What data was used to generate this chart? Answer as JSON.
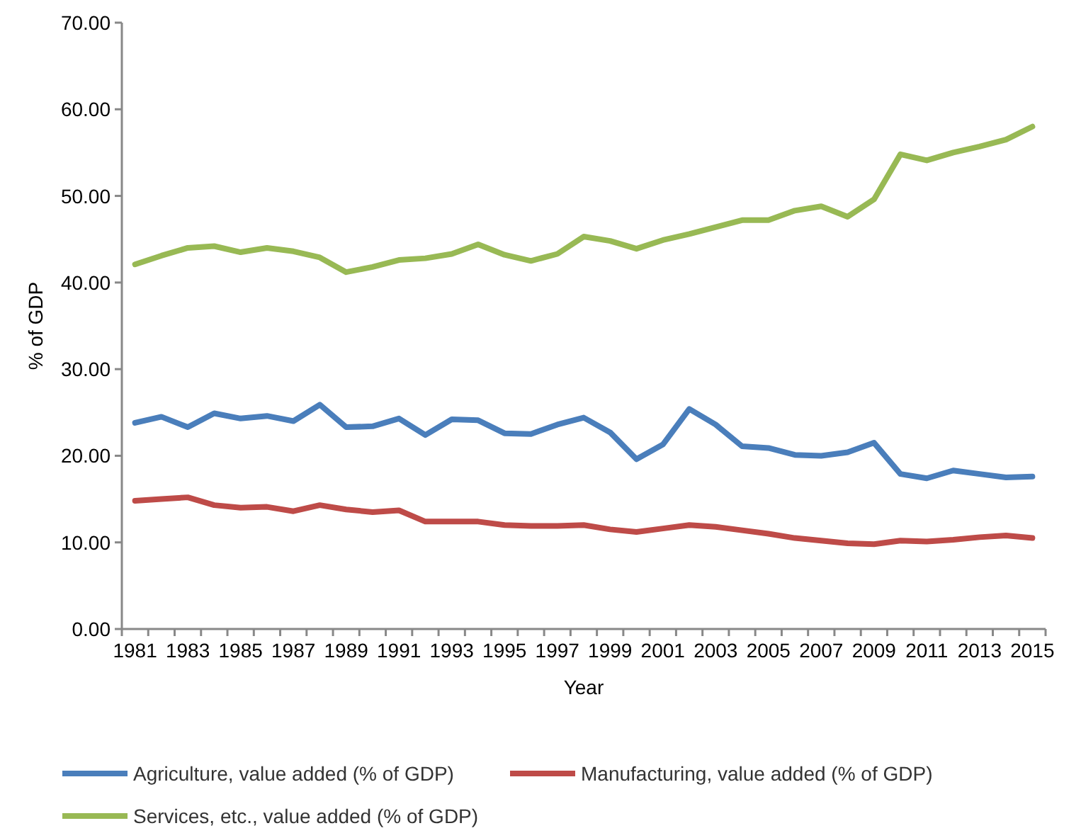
{
  "chart_data": {
    "type": "line",
    "xlabel": "Year",
    "ylabel": "% of GDP",
    "categories": [
      "1981",
      null,
      "1983",
      null,
      "1985",
      null,
      "1987",
      null,
      "1989",
      null,
      "1991",
      null,
      "1993",
      null,
      "1995",
      null,
      "1997",
      null,
      "1999",
      null,
      "2001",
      null,
      "2003",
      null,
      "2005",
      null,
      "2007",
      null,
      "2009",
      null,
      "2011",
      null,
      "2013",
      null,
      "2015"
    ],
    "ylim": [
      0,
      70
    ],
    "yticks": [
      {
        "value": 0,
        "label": "0.00"
      },
      {
        "value": 10,
        "label": "10.00"
      },
      {
        "value": 20,
        "label": "20.00"
      },
      {
        "value": 30,
        "label": "30.00"
      },
      {
        "value": 40,
        "label": "40.00"
      },
      {
        "value": 50,
        "label": "50.00"
      },
      {
        "value": 60,
        "label": "60.00"
      },
      {
        "value": 70,
        "label": "70.00"
      }
    ],
    "grid": false,
    "legend": "bottom",
    "marker": "none",
    "line_style": "solid",
    "series": [
      {
        "name": "Agriculture, value added (% of GDP)",
        "color": "#4a7ebb",
        "values": [
          23.8,
          24.5,
          23.3,
          24.9,
          24.3,
          24.6,
          24.0,
          25.9,
          23.3,
          23.4,
          24.3,
          22.4,
          24.2,
          24.1,
          22.6,
          22.5,
          23.6,
          24.4,
          22.7,
          19.6,
          21.3,
          25.4,
          23.6,
          21.1,
          20.9,
          20.1,
          20.0,
          20.4,
          21.5,
          17.9,
          17.4,
          18.3,
          17.9,
          17.5,
          17.6
        ]
      },
      {
        "name": "Manufacturing, value added (% of GDP)",
        "color": "#be4b48",
        "values": [
          14.8,
          15.0,
          15.2,
          14.3,
          14.0,
          14.1,
          13.6,
          14.3,
          13.8,
          13.5,
          13.7,
          12.4,
          12.4,
          12.4,
          12.0,
          11.9,
          11.9,
          12.0,
          11.5,
          11.2,
          11.6,
          12.0,
          11.8,
          11.4,
          11.0,
          10.5,
          10.2,
          9.9,
          9.8,
          10.2,
          10.1,
          10.3,
          10.6,
          10.8,
          10.5
        ]
      },
      {
        "name": "Services, etc., value added (% of GDP)",
        "color": "#98b954",
        "values": [
          42.1,
          43.1,
          44.0,
          44.2,
          43.5,
          44.0,
          43.6,
          42.9,
          41.2,
          41.8,
          42.6,
          42.8,
          43.3,
          44.4,
          43.2,
          42.5,
          43.3,
          45.3,
          44.8,
          43.9,
          44.9,
          45.6,
          46.4,
          47.2,
          47.2,
          48.3,
          48.8,
          47.6,
          49.6,
          54.8,
          54.1,
          55.0,
          55.7,
          56.5,
          58.0
        ]
      }
    ]
  }
}
